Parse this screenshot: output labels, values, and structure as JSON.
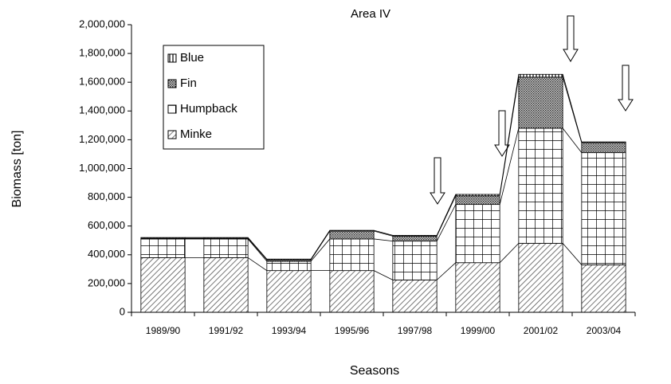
{
  "chart_data": {
    "type": "stacked_bar",
    "title": "Area IV",
    "x_label": "Seasons",
    "y_label": "Biomass [ton]",
    "categories": [
      "1989/90",
      "1991/92",
      "1993/94",
      "1995/96",
      "1997/98",
      "1999/00",
      "2001/02",
      "2003/04"
    ],
    "series": [
      {
        "name": "Minke",
        "values": [
          380000,
          380000,
          290000,
          290000,
          225000,
          345000,
          480000,
          330000
        ]
      },
      {
        "name": "Humpback",
        "values": [
          130000,
          130000,
          65000,
          220000,
          270000,
          405000,
          800000,
          780000
        ]
      },
      {
        "name": "Fin",
        "values": [
          5000,
          5000,
          10000,
          55000,
          35000,
          60000,
          355000,
          70000
        ]
      },
      {
        "name": "Blue",
        "values": [
          5000,
          5000,
          5000,
          5000,
          5000,
          10000,
          20000,
          5000
        ]
      }
    ],
    "ylim": [
      0,
      2000000
    ],
    "yticks": [
      0,
      {
        "value": 200000,
        "label": "200,000"
      },
      {
        "value": 400000,
        "label": "400,000"
      },
      {
        "value": 600000,
        "label": "600,000"
      },
      {
        "value": 800000,
        "label": "800,000"
      },
      {
        "value": 1000000,
        "label": "1,000,000"
      },
      {
        "value": 1200000,
        "label": "1,200,000"
      },
      {
        "value": 1400000,
        "label": "1,400,000"
      },
      {
        "value": 1600000,
        "label": "1,600,000"
      },
      {
        "value": 1800000,
        "label": "1,800,000"
      },
      {
        "value": 2000000,
        "label": "2,000,000"
      }
    ],
    "grid": false,
    "legend": "upper left"
  }
}
